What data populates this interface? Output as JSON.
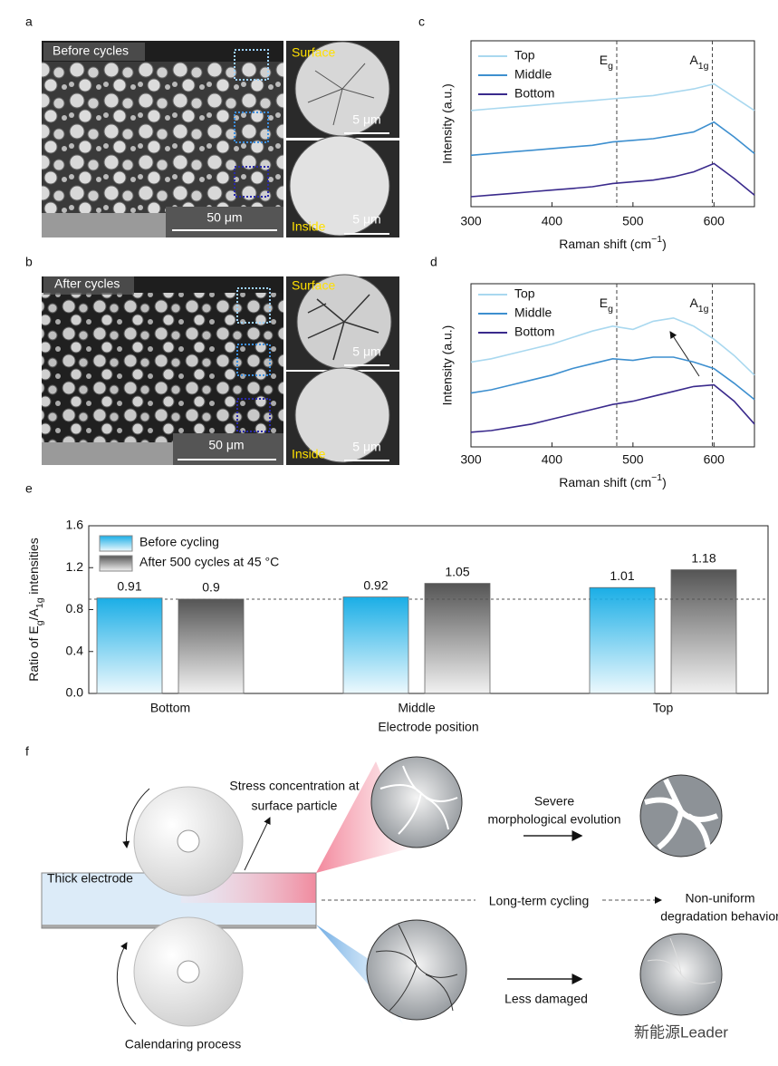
{
  "sem": [
    {
      "label": "a",
      "caption": "Before cycles",
      "scale": "50 μm",
      "surface": "Surface",
      "inside": "Inside",
      "scale_small": [
        "5 μm",
        "5 μm"
      ]
    },
    {
      "label": "b",
      "caption": "After cycles",
      "scale": "50 μm",
      "surface": "Surface",
      "inside": "Inside",
      "scale_small": [
        "5 μm",
        "5 μm"
      ]
    }
  ],
  "chart_data": [
    {
      "type": "line",
      "label": "c",
      "xlabel": [
        {
          "t": "Raman shift (cm"
        },
        {
          "t": "−1",
          "sup": true
        },
        {
          "t": ")"
        }
      ],
      "ylabel": "Intensity (a.u.)",
      "x": [
        300,
        325,
        350,
        375,
        400,
        425,
        450,
        475,
        500,
        525,
        550,
        575,
        600,
        625,
        650
      ],
      "xlim": [
        300,
        650
      ],
      "xticks": [
        300,
        400,
        500,
        600
      ],
      "ylim": [
        0,
        10
      ],
      "legend": "top-left",
      "markers": [
        {
          "x": 480,
          "label": [
            {
              "t": "E"
            },
            {
              "t": "g",
              "sub": true
            }
          ]
        },
        {
          "x": 598,
          "label": [
            {
              "t": "A"
            },
            {
              "t": "1g",
              "sub": true
            }
          ]
        }
      ],
      "series": [
        {
          "name": "Top",
          "color": "#a9d8ef",
          "values": [
            5.8,
            5.9,
            6.0,
            6.1,
            6.2,
            6.3,
            6.4,
            6.5,
            6.6,
            6.7,
            6.9,
            7.1,
            7.4,
            6.6,
            5.8
          ]
        },
        {
          "name": "Middle",
          "color": "#3d8fcf",
          "values": [
            3.1,
            3.2,
            3.3,
            3.4,
            3.5,
            3.6,
            3.7,
            3.9,
            4.0,
            4.1,
            4.3,
            4.5,
            5.1,
            4.2,
            3.2
          ]
        },
        {
          "name": "Bottom",
          "color": "#3a2a8c",
          "values": [
            0.6,
            0.7,
            0.8,
            0.9,
            1.0,
            1.1,
            1.2,
            1.4,
            1.5,
            1.6,
            1.8,
            2.1,
            2.6,
            1.7,
            0.7
          ]
        }
      ]
    },
    {
      "type": "line",
      "label": "d",
      "xlabel": [
        {
          "t": "Raman shift (cm"
        },
        {
          "t": "−1",
          "sup": true
        },
        {
          "t": ")"
        }
      ],
      "ylabel": "Intensity (a.u.)",
      "x": [
        300,
        325,
        350,
        375,
        400,
        425,
        450,
        475,
        500,
        525,
        550,
        575,
        600,
        625,
        650
      ],
      "xlim": [
        300,
        650
      ],
      "xticks": [
        300,
        400,
        500,
        600
      ],
      "ylim": [
        0,
        10
      ],
      "legend": "top-left",
      "markers": [
        {
          "x": 480,
          "label": [
            {
              "t": "E"
            },
            {
              "t": "g",
              "sub": true
            }
          ]
        },
        {
          "x": 598,
          "label": [
            {
              "t": "A"
            },
            {
              "t": "1g",
              "sub": true
            }
          ]
        }
      ],
      "series": [
        {
          "name": "Top",
          "color": "#a9d8ef",
          "values": [
            5.2,
            5.4,
            5.7,
            6.0,
            6.3,
            6.7,
            7.1,
            7.4,
            7.2,
            7.7,
            7.9,
            7.4,
            6.6,
            5.6,
            4.4
          ]
        },
        {
          "name": "Middle",
          "color": "#3d8fcf",
          "values": [
            3.3,
            3.5,
            3.8,
            4.1,
            4.4,
            4.8,
            5.1,
            5.4,
            5.3,
            5.5,
            5.5,
            5.2,
            4.8,
            3.9,
            2.9
          ]
        },
        {
          "name": "Bottom",
          "color": "#3a2a8c",
          "values": [
            0.9,
            1.0,
            1.2,
            1.4,
            1.7,
            2.0,
            2.3,
            2.6,
            2.8,
            3.1,
            3.4,
            3.7,
            3.8,
            2.8,
            1.4
          ]
        }
      ]
    },
    {
      "type": "bar",
      "label": "e",
      "xlabel": "Electrode position",
      "ylabel": [
        {
          "t": "Ratio of E"
        },
        {
          "t": "g",
          "sub": true
        },
        {
          "t": "/A"
        },
        {
          "t": "1g",
          "sub": true
        },
        {
          "t": " intensities"
        }
      ],
      "categories": [
        "Bottom",
        "Middle",
        "Top"
      ],
      "ylim": [
        0,
        1.6
      ],
      "yticks": [
        {
          "value": 0,
          "label": "0.0"
        },
        0.4,
        0.8,
        1.2,
        1.6
      ],
      "legend": "top-left",
      "refline": 0.9,
      "series": [
        {
          "name": "Before cycling",
          "color": "#1aaee6",
          "values": [
            0.91,
            0.92,
            1.01
          ]
        },
        {
          "name": "After 500 cycles at 45 °C",
          "color": "#555555",
          "values": [
            0.9,
            1.05,
            1.18
          ]
        }
      ]
    }
  ],
  "schematic": {
    "label": "f",
    "stress": [
      "Stress concentration at",
      "surface particle"
    ],
    "electrode": "Thick electrode",
    "severe": [
      "Severe",
      "morphological evolution"
    ],
    "cycling": "Long-term cycling",
    "nonuniform": [
      "Non-uniform",
      "degradation behavior"
    ],
    "less": "Less damaged",
    "process": "Calendaring process"
  },
  "watermark": "新能源Leader"
}
